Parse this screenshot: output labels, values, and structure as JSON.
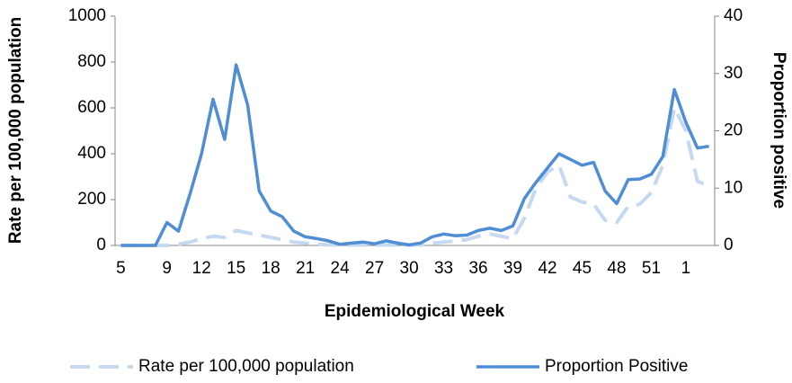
{
  "chart_data": {
    "type": "line",
    "xlabel": "Epidemiological Week",
    "ylabel": "Rate per 100,000 population",
    "y2label": "Proportion positive",
    "categories": [
      "5",
      null,
      null,
      null,
      "9",
      null,
      null,
      "12",
      null,
      null,
      "15",
      null,
      null,
      "18",
      null,
      null,
      "21",
      null,
      null,
      "24",
      null,
      null,
      "27",
      null,
      null,
      "30",
      null,
      null,
      "33",
      null,
      null,
      "36",
      null,
      null,
      "39",
      null,
      null,
      "42",
      null,
      null,
      "45",
      null,
      null,
      "48",
      null,
      null,
      "51",
      null,
      null,
      "1",
      null,
      null
    ],
    "series": [
      {
        "name": "Rate per 100,000 population",
        "color": "#c5d9f1",
        "dashed": true,
        "values": [
          0,
          0,
          0,
          0,
          0,
          5,
          15,
          30,
          40,
          35,
          65,
          55,
          45,
          35,
          25,
          15,
          10,
          5,
          3,
          2,
          2,
          2,
          2,
          2,
          2,
          2,
          2,
          10,
          15,
          20,
          25,
          40,
          50,
          40,
          30,
          120,
          250,
          320,
          350,
          210,
          190,
          180,
          110,
          100,
          170,
          180,
          230,
          350,
          600,
          500,
          280,
          260
        ]
      },
      {
        "name": "Proportion Positive",
        "color": "#4f8ed4",
        "axis": "y2",
        "values": [
          0,
          0,
          0,
          0,
          4,
          2.5,
          9,
          16,
          25.5,
          18.5,
          31.5,
          24.5,
          9.5,
          6,
          5,
          2.5,
          1.5,
          1.2,
          0.8,
          0.2,
          0.4,
          0.6,
          0.3,
          0.8,
          0.4,
          0.1,
          0.4,
          1.5,
          2,
          1.7,
          1.8,
          2.6,
          3,
          2.6,
          3.4,
          8.2,
          11,
          13.5,
          16,
          15,
          14,
          14.5,
          9.5,
          7.3,
          11.5,
          11.6,
          12.4,
          15.5,
          27.2,
          21.5,
          17,
          17.3
        ]
      }
    ],
    "ylim": [
      0,
      1000
    ],
    "yticks": [
      0,
      200,
      400,
      600,
      800,
      1000
    ],
    "y2lim": [
      0,
      40
    ],
    "y2ticks": [
      0,
      10,
      20,
      30,
      40
    ],
    "legend": "bottom"
  }
}
